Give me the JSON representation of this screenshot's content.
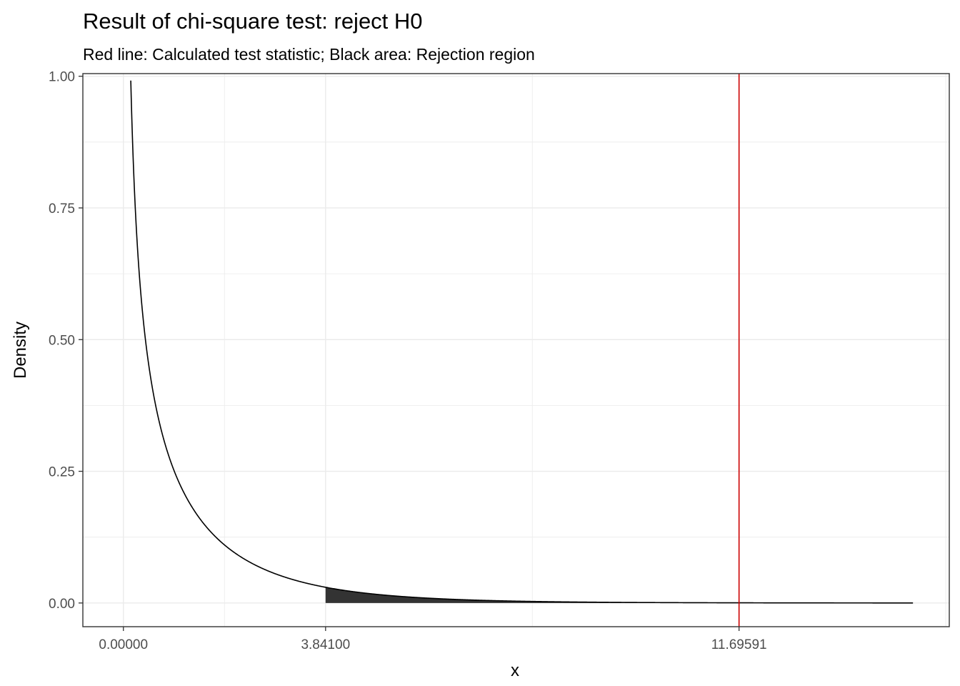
{
  "chart_data": {
    "type": "area",
    "title": "Result of chi-square test: reject H0",
    "subtitle": "Red line: Calculated test statistic; Black area: Rejection region",
    "xlabel": "x",
    "ylabel": "Density",
    "xlim": [
      -0.77,
      15.69
    ],
    "ylim": [
      -0.045,
      1.005
    ],
    "x_ticks": [
      0.0,
      3.841,
      11.69591
    ],
    "x_tick_labels": [
      "0.00000",
      "3.84100",
      "11.69591"
    ],
    "y_ticks": [
      0.0,
      0.25,
      0.5,
      0.75,
      1.0
    ],
    "y_tick_labels": [
      "0.00",
      "0.25",
      "0.50",
      "0.75",
      "1.00"
    ],
    "grid": true,
    "distribution": "chi-square",
    "degrees_of_freedom": 1,
    "curve_x_range": [
      0.0,
      15.0
    ],
    "critical_value": 3.841,
    "test_statistic": 11.69591,
    "colors": {
      "curve": "#000000",
      "rejection_area": "#333333",
      "test_statistic_line": "#cc0000",
      "grid": "#ebebeb",
      "panel_border": "#333333"
    }
  }
}
